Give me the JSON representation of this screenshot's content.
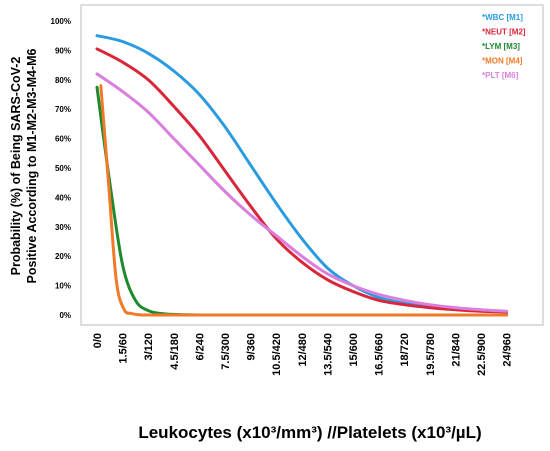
{
  "chart_data": {
    "type": "line",
    "xlabel": "Leukocytes (x10³/mm³) //Platelets (x10³/µL)",
    "ylabel": [
      "Probability (%) of Being SARS-CoV-2",
      "Positive According to M1-M2-M3-M4-M6"
    ],
    "ylim": [
      0,
      100
    ],
    "y_ticks": [
      "0%",
      "10%",
      "20%",
      "30%",
      "40%",
      "50%",
      "60%",
      "70%",
      "80%",
      "90%",
      "100%"
    ],
    "x_ticks": [
      "0/0",
      "1.5/60",
      "3/120",
      "4.5/180",
      "6/240",
      "7.5/300",
      "9/360",
      "10.5/420",
      "12/480",
      "13.5/540",
      "15/600",
      "16.5/660",
      "18/720",
      "19.5/780",
      "21/840",
      "22.5/900",
      "24/960"
    ],
    "grid": false,
    "legend_position": "top-right",
    "series": [
      {
        "name": "*WBC [M1]",
        "color": "#2b9be0",
        "x": [
          0,
          1,
          2,
          3,
          4,
          5,
          6,
          7,
          8,
          9,
          10,
          11,
          12,
          13,
          14,
          15,
          16
        ],
        "values": [
          95,
          93,
          89,
          83,
          75,
          64,
          51,
          38,
          26,
          16,
          10,
          6,
          4,
          3,
          2,
          1.5,
          1.2
        ]
      },
      {
        "name": "*NEUT [M2]",
        "color": "#d9263b",
        "x": [
          0,
          1,
          2,
          3,
          4,
          5,
          6,
          7,
          8,
          9,
          10,
          11,
          12,
          13,
          14,
          15,
          16
        ],
        "values": [
          90.5,
          86,
          80,
          71,
          61,
          49,
          37,
          26,
          18,
          12,
          8,
          5,
          3.5,
          2.5,
          1.8,
          1.3,
          1
        ]
      },
      {
        "name": "*LYM [M3]",
        "color": "#1e8a2e",
        "x": [
          0,
          0.5,
          1,
          1.5,
          2,
          2.5,
          3,
          4,
          6,
          16
        ],
        "values": [
          77.5,
          45,
          17,
          5,
          1.5,
          0.5,
          0.2,
          0,
          0,
          0
        ]
      },
      {
        "name": "*MON [M4]",
        "color": "#f07a28",
        "x": [
          0.15,
          0.45,
          0.75,
          1.05,
          1.35,
          1.65,
          2,
          3,
          16
        ],
        "values": [
          78,
          45,
          12,
          2,
          0.5,
          0.1,
          0,
          0,
          0
        ]
      },
      {
        "name": "*PLT [M6]",
        "color": "#d97fdd",
        "x": [
          0,
          1,
          2,
          3,
          4,
          5,
          6,
          7,
          8,
          9,
          10,
          11,
          12,
          13,
          14,
          15,
          16
        ],
        "values": [
          82,
          76,
          69,
          60,
          51,
          42,
          34,
          27,
          20,
          14,
          10,
          7,
          5,
          3.5,
          2.5,
          1.8,
          1.3
        ]
      }
    ]
  }
}
